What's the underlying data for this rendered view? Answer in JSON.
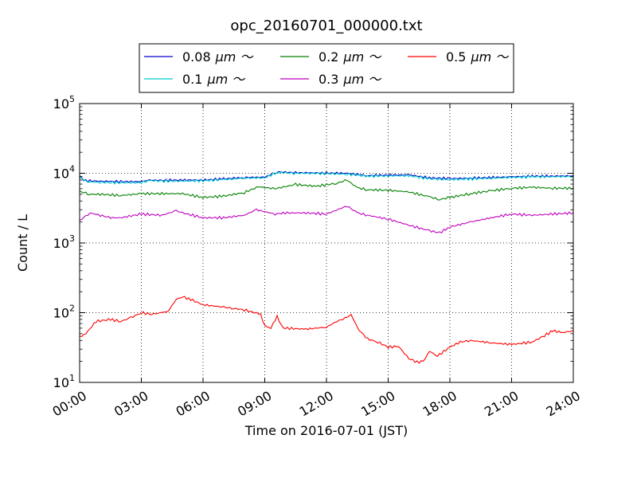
{
  "chart_data": {
    "type": "line",
    "title": "opc_20160701_000000.txt",
    "xlabel": "Time on 2016-07-01 (JST)",
    "ylabel": "Count / L",
    "x_range_hours": [
      0,
      24
    ],
    "y_scale": "log",
    "ylim": [
      10,
      100000
    ],
    "x_ticks": [
      {
        "hour": 0,
        "label": "00:00"
      },
      {
        "hour": 3,
        "label": "03:00"
      },
      {
        "hour": 6,
        "label": "06:00"
      },
      {
        "hour": 9,
        "label": "09:00"
      },
      {
        "hour": 12,
        "label": "12:00"
      },
      {
        "hour": 15,
        "label": "15:00"
      },
      {
        "hour": 18,
        "label": "18:00"
      },
      {
        "hour": 21,
        "label": "21:00"
      },
      {
        "hour": 24,
        "label": "24:00"
      }
    ],
    "y_ticks": [
      {
        "value": 10,
        "base": "10",
        "exp": "1"
      },
      {
        "value": 100,
        "base": "10",
        "exp": "2"
      },
      {
        "value": 1000,
        "base": "10",
        "exp": "3"
      },
      {
        "value": 10000,
        "base": "10",
        "exp": "4"
      },
      {
        "value": 100000,
        "base": "10",
        "exp": "5"
      }
    ],
    "grid": true,
    "legend_placement": "top-center",
    "series": [
      {
        "name": "0.08 μm ～",
        "legend_value": "0.08",
        "legend_unit": "μm ～",
        "color": "#0000cc",
        "points": [
          [
            0,
            8800
          ],
          [
            0.3,
            7800
          ],
          [
            1,
            7700
          ],
          [
            2,
            7600
          ],
          [
            3,
            7600
          ],
          [
            3.3,
            8000
          ],
          [
            4,
            7900
          ],
          [
            5,
            8000
          ],
          [
            6,
            8000
          ],
          [
            7,
            8300
          ],
          [
            8,
            8700
          ],
          [
            9,
            8800
          ],
          [
            9.6,
            10500
          ],
          [
            10.5,
            10200
          ],
          [
            12,
            10100
          ],
          [
            13,
            10000
          ],
          [
            14,
            9300
          ],
          [
            16,
            9500
          ],
          [
            17,
            8600
          ],
          [
            18,
            8400
          ],
          [
            19,
            8500
          ],
          [
            20,
            8700
          ],
          [
            21,
            8900
          ],
          [
            22,
            9100
          ],
          [
            23,
            9100
          ],
          [
            24,
            9200
          ]
        ]
      },
      {
        "name": "0.1 μm ～",
        "legend_value": "0.1",
        "legend_unit": "μm ～",
        "color": "#00cccc",
        "points": [
          [
            0,
            9200
          ],
          [
            0.2,
            8000
          ],
          [
            0.4,
            7500
          ],
          [
            1,
            7400
          ],
          [
            2,
            7300
          ],
          [
            3,
            7300
          ],
          [
            3.3,
            7900
          ],
          [
            4,
            7700
          ],
          [
            5,
            7700
          ],
          [
            6,
            7800
          ],
          [
            7,
            8100
          ],
          [
            8,
            8500
          ],
          [
            9,
            8600
          ],
          [
            9.6,
            10300
          ],
          [
            10.5,
            10000
          ],
          [
            12,
            9900
          ],
          [
            13,
            9700
          ],
          [
            14,
            9100
          ],
          [
            16,
            9200
          ],
          [
            17,
            8300
          ],
          [
            18,
            8100
          ],
          [
            19,
            8300
          ],
          [
            20,
            8500
          ],
          [
            21,
            8700
          ],
          [
            22,
            8900
          ],
          [
            23,
            8900
          ],
          [
            24,
            9000
          ]
        ]
      },
      {
        "name": "0.2 μm ～",
        "legend_value": "0.2",
        "legend_unit": "μm ～",
        "color": "#008000",
        "points": [
          [
            0,
            5500
          ],
          [
            0.5,
            5000
          ],
          [
            1,
            5000
          ],
          [
            2,
            4800
          ],
          [
            3,
            5100
          ],
          [
            4,
            5100
          ],
          [
            5,
            5100
          ],
          [
            6,
            4500
          ],
          [
            7,
            4700
          ],
          [
            8,
            5300
          ],
          [
            8.7,
            6400
          ],
          [
            9.5,
            6000
          ],
          [
            10.5,
            6900
          ],
          [
            11.5,
            6500
          ],
          [
            12.5,
            7200
          ],
          [
            13,
            8000
          ],
          [
            13.5,
            6200
          ],
          [
            14,
            5800
          ],
          [
            15,
            5700
          ],
          [
            16,
            5400
          ],
          [
            17,
            4600
          ],
          [
            17.5,
            4200
          ],
          [
            18,
            4500
          ],
          [
            19,
            5100
          ],
          [
            20,
            5600
          ],
          [
            21,
            6100
          ],
          [
            22,
            6300
          ],
          [
            23,
            6100
          ],
          [
            24,
            6100
          ]
        ]
      },
      {
        "name": "0.3 μm ～",
        "legend_value": "0.3",
        "legend_unit": "μm ～",
        "color": "#bf00bf",
        "points": [
          [
            0,
            2100
          ],
          [
            0.5,
            2700
          ],
          [
            1,
            2500
          ],
          [
            1.5,
            2300
          ],
          [
            2,
            2300
          ],
          [
            3,
            2600
          ],
          [
            4,
            2500
          ],
          [
            4.7,
            2900
          ],
          [
            5,
            2700
          ],
          [
            6,
            2300
          ],
          [
            7,
            2300
          ],
          [
            8,
            2500
          ],
          [
            8.6,
            3000
          ],
          [
            9.5,
            2600
          ],
          [
            10,
            2700
          ],
          [
            11,
            2700
          ],
          [
            12,
            2600
          ],
          [
            13,
            3400
          ],
          [
            13.5,
            2700
          ],
          [
            14,
            2500
          ],
          [
            15,
            2200
          ],
          [
            16,
            1800
          ],
          [
            17,
            1500
          ],
          [
            17.5,
            1400
          ],
          [
            18,
            1700
          ],
          [
            19,
            2000
          ],
          [
            20,
            2300
          ],
          [
            21,
            2600
          ],
          [
            22,
            2500
          ],
          [
            23,
            2600
          ],
          [
            24,
            2700
          ]
        ]
      },
      {
        "name": "0.5 μm ～",
        "legend_value": "0.5",
        "legend_unit": "μm ～",
        "color": "#ff0000",
        "points": [
          [
            0,
            45
          ],
          [
            0.3,
            50
          ],
          [
            0.8,
            75
          ],
          [
            1.5,
            80
          ],
          [
            2,
            75
          ],
          [
            2.5,
            85
          ],
          [
            3,
            100
          ],
          [
            3.5,
            95
          ],
          [
            4,
            100
          ],
          [
            4.3,
            105
          ],
          [
            4.7,
            155
          ],
          [
            5,
            170
          ],
          [
            5.5,
            150
          ],
          [
            6,
            130
          ],
          [
            7,
            120
          ],
          [
            7.5,
            115
          ],
          [
            8,
            110
          ],
          [
            8.8,
            95
          ],
          [
            9,
            65
          ],
          [
            9.3,
            60
          ],
          [
            9.6,
            90
          ],
          [
            9.8,
            65
          ],
          [
            10,
            60
          ],
          [
            11,
            58
          ],
          [
            12,
            62
          ],
          [
            12.5,
            75
          ],
          [
            13,
            85
          ],
          [
            13.2,
            95
          ],
          [
            13.5,
            60
          ],
          [
            14,
            42
          ],
          [
            14.5,
            38
          ],
          [
            15,
            32
          ],
          [
            15.5,
            33
          ],
          [
            16,
            22
          ],
          [
            16.5,
            19
          ],
          [
            16.8,
            22
          ],
          [
            17,
            28
          ],
          [
            17.4,
            24
          ],
          [
            18,
            32
          ],
          [
            18.5,
            38
          ],
          [
            19,
            40
          ],
          [
            20,
            37
          ],
          [
            21,
            35
          ],
          [
            22,
            38
          ],
          [
            22.5,
            45
          ],
          [
            23,
            55
          ],
          [
            23.5,
            52
          ],
          [
            24,
            55
          ]
        ]
      }
    ]
  }
}
